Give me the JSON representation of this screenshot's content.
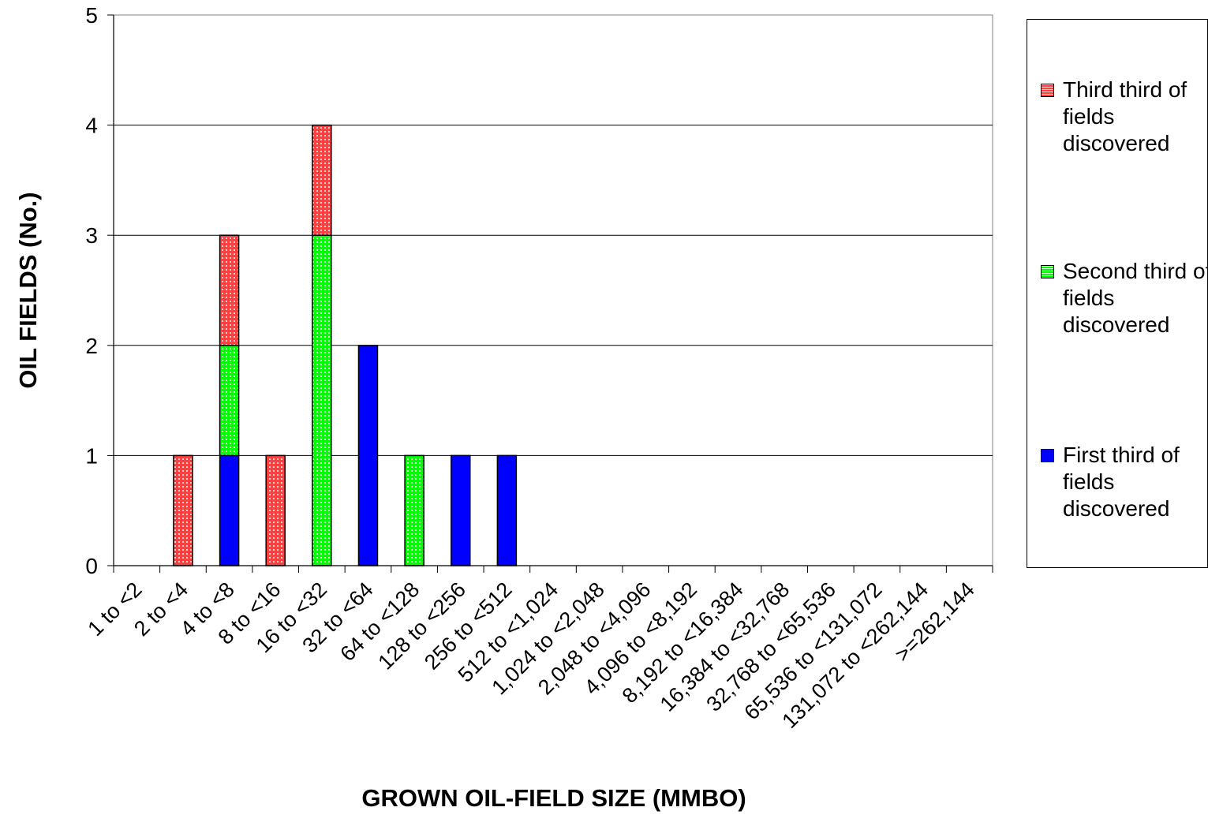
{
  "chart_data": {
    "type": "bar",
    "stacked": true,
    "xlabel": "GROWN OIL-FIELD SIZE (MMBO)",
    "ylabel": "OIL FIELDS (No.)",
    "ylim": [
      0,
      5
    ],
    "yticks": [
      "0",
      "1",
      "2",
      "3",
      "4",
      "5"
    ],
    "grid": "horizontal",
    "legend_position": "right",
    "categories": [
      "1 to <2",
      "2 to <4",
      "4 to <8",
      "8 to <16",
      "16 to <32",
      "32 to <64",
      "64 to <128",
      "128 to <256",
      "256 to <512",
      "512 to <1,024",
      "1,024 to <2,048",
      "2,048 to <4,096",
      "4,096 to <8,192",
      "8,192 to <16,384",
      "16,384 to <32,768",
      "32,768 to <65,536",
      "65,536 to <131,072",
      "131,072 to <262,144",
      ">=262,144"
    ],
    "series": [
      {
        "name": "First third of fields discovered",
        "color": "#0000ff",
        "pattern": "solid",
        "values": [
          0,
          0,
          1,
          0,
          0,
          2,
          0,
          1,
          1,
          0,
          0,
          0,
          0,
          0,
          0,
          0,
          0,
          0,
          0
        ]
      },
      {
        "name": "Second third of fields discovered",
        "color": "#00ff00",
        "pattern": "dotted",
        "values": [
          0,
          0,
          1,
          0,
          3,
          0,
          1,
          0,
          0,
          0,
          0,
          0,
          0,
          0,
          0,
          0,
          0,
          0,
          0
        ]
      },
      {
        "name": "Third third of fields discovered",
        "color": "#ff4444",
        "pattern": "dotted",
        "values": [
          0,
          1,
          1,
          1,
          1,
          0,
          0,
          0,
          0,
          0,
          0,
          0,
          0,
          0,
          0,
          0,
          0,
          0,
          0
        ]
      }
    ]
  },
  "legend": {
    "items": [
      {
        "label": "Third third of fields discovered",
        "color": "#ff4444",
        "pattern": "dotted"
      },
      {
        "label": "Second third of fields discovered",
        "color": "#00ff00",
        "pattern": "dotted"
      },
      {
        "label": "First third of fields discovered",
        "color": "#0000ff",
        "pattern": "solid"
      }
    ]
  }
}
